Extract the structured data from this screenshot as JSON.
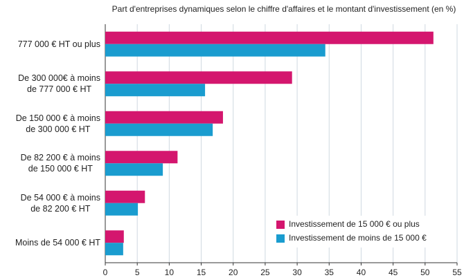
{
  "chart_data": {
    "type": "hbar",
    "title": "Part d'entreprises dynamiques selon le chiffre d'affaires et le montant d'investissement (en %)",
    "categories": [
      "777 000 € HT ou plus",
      "De 300 000€ à moins\nde 777 000 € HT",
      "De 150 000 € à moins\nde 300 000 € HT",
      "De 82 200 € à moins\nde 150 000 € HT",
      "De 54 000 € à moins\nde 82 200 € HT",
      "Moins de 54 000 € HT"
    ],
    "series": [
      {
        "name": "Investissement de 15 000 € ou plus",
        "color": "#d4166e",
        "values": [
          51.3,
          29.2,
          18.4,
          11.3,
          6.2,
          2.9
        ]
      },
      {
        "name": "Investissement de moins de 15 000 €",
        "color": "#1a9ccf",
        "values": [
          34.4,
          15.6,
          16.8,
          9.0,
          5.1,
          2.8
        ]
      }
    ],
    "xlim": [
      0,
      55
    ],
    "xticks": [
      0,
      5,
      10,
      15,
      20,
      25,
      30,
      35,
      40,
      45,
      50,
      55
    ],
    "grid": true,
    "legend": "lower right"
  }
}
